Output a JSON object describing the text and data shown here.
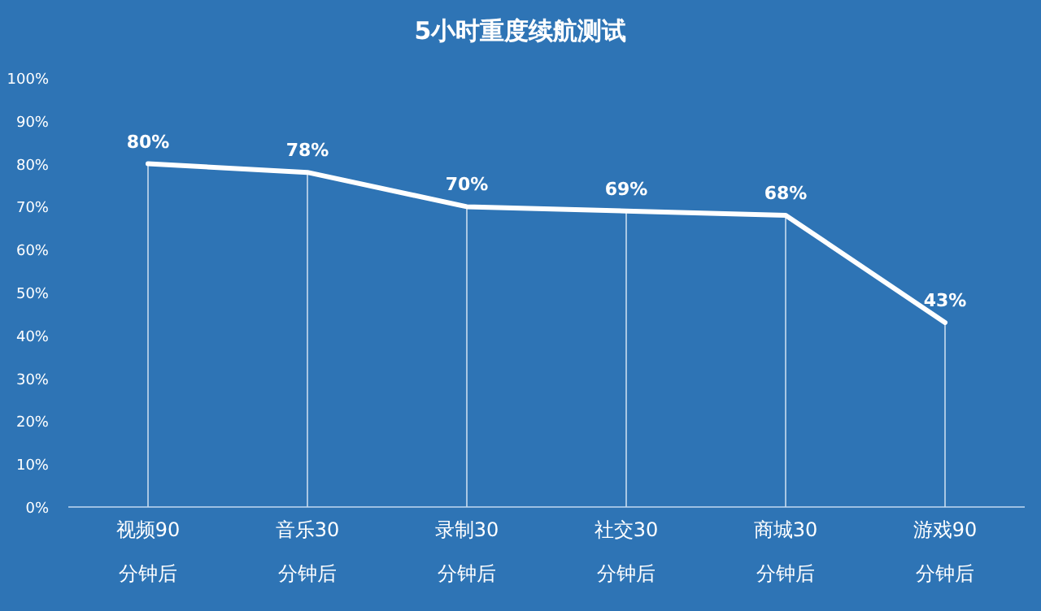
{
  "chart_data": {
    "type": "line",
    "title": "5小时重度续航测试",
    "categories": [
      "视频90\n分钟后",
      "音乐30\n分钟后",
      "录制30\n分钟后",
      "社交30\n分钟后",
      "商城30\n分钟后",
      "游戏90\n分钟后"
    ],
    "values": [
      80,
      78,
      70,
      69,
      68,
      43
    ],
    "value_labels": [
      "80%",
      "78%",
      "70%",
      "69%",
      "68%",
      "43%"
    ],
    "color": "#ffffff",
    "ylim": [
      0,
      100
    ],
    "yticks": [
      {
        "value": 0,
        "label": "0%"
      },
      {
        "value": 10,
        "label": "10%"
      },
      {
        "value": 20,
        "label": "20%"
      },
      {
        "value": 30,
        "label": "30%"
      },
      {
        "value": 40,
        "label": "40%"
      },
      {
        "value": 50,
        "label": "50%"
      },
      {
        "value": 60,
        "label": "60%"
      },
      {
        "value": 70,
        "label": "70%"
      },
      {
        "value": 80,
        "label": "80%"
      },
      {
        "value": 90,
        "label": "90%"
      },
      {
        "value": 100,
        "label": "100%"
      }
    ],
    "grid": "x",
    "marker": "none",
    "line_style": "solid"
  }
}
